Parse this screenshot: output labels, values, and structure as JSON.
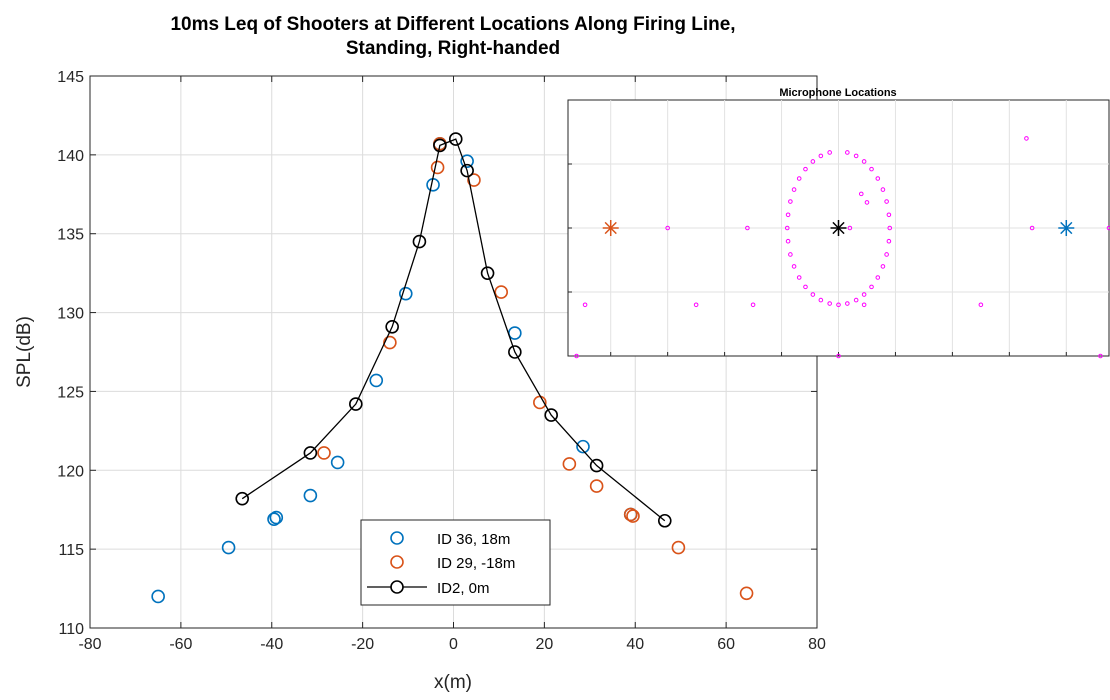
{
  "chart_data": [
    {
      "type": "scatter",
      "title_line1": "10ms Leq of Shooters at Different Locations Along Firing Line,",
      "title_line2": "Standing, Right-handed",
      "xlabel": "x(m)",
      "ylabel": "SPL(dB)",
      "xlim": [
        -80,
        80
      ],
      "ylim": [
        110,
        145
      ],
      "xticks": [
        -80,
        -60,
        -40,
        -20,
        0,
        20,
        40,
        60,
        80
      ],
      "yticks": [
        110,
        115,
        120,
        125,
        130,
        135,
        140,
        145
      ],
      "grid": true,
      "legend_position": "bottom-center",
      "series": [
        {
          "name": "ID 36, 18m",
          "color": "#0072BD",
          "marker": "circle",
          "line": false,
          "points": [
            [
              -65,
              112
            ],
            [
              -49.5,
              115.1
            ],
            [
              -39.5,
              116.9
            ],
            [
              -39,
              117
            ],
            [
              -31.5,
              118.4
            ],
            [
              -25.5,
              120.5
            ],
            [
              -17,
              125.7
            ],
            [
              -10.5,
              131.2
            ],
            [
              -4.5,
              138.1
            ],
            [
              -3,
              140.7
            ],
            [
              3,
              139.6
            ],
            [
              13.5,
              128.7
            ],
            [
              28.5,
              121.5
            ],
            [
              39,
              117.2
            ]
          ]
        },
        {
          "name": "ID 29, -18m",
          "color": "#D95319",
          "marker": "circle",
          "line": false,
          "points": [
            [
              -28.5,
              121.1
            ],
            [
              -14,
              128.1
            ],
            [
              -3.5,
              139.2
            ],
            [
              -3,
              140.7
            ],
            [
              4.5,
              138.4
            ],
            [
              10.5,
              131.3
            ],
            [
              19,
              124.3
            ],
            [
              25.5,
              120.4
            ],
            [
              31.5,
              119
            ],
            [
              39,
              117.2
            ],
            [
              39.5,
              117.1
            ],
            [
              49.5,
              115.1
            ],
            [
              64.5,
              112.2
            ]
          ]
        },
        {
          "name": "ID2, 0m",
          "color": "#000000",
          "marker": "circle",
          "line": true,
          "points": [
            [
              -46.5,
              118.2
            ],
            [
              -31.5,
              121.1
            ],
            [
              -21.5,
              124.2
            ],
            [
              -13.5,
              129.1
            ],
            [
              -7.5,
              134.5
            ],
            [
              -3,
              140.6
            ],
            [
              0.5,
              141
            ],
            [
              3,
              139
            ],
            [
              7.5,
              132.5
            ],
            [
              13.5,
              127.5
            ],
            [
              21.5,
              123.5
            ],
            [
              31.5,
              120.3
            ],
            [
              46.5,
              116.8
            ]
          ]
        }
      ]
    },
    {
      "type": "scatter",
      "title": "Microphone Locations",
      "xlim": [
        -95,
        95
      ],
      "ylim": [
        -30,
        30
      ],
      "grid": true,
      "mic_color": "#FF00FF",
      "mics": [
        [
          -92,
          -30
        ],
        [
          0,
          -30
        ],
        [
          92,
          -30
        ],
        [
          -89,
          -18
        ],
        [
          -50,
          -18
        ],
        [
          -30,
          -18
        ],
        [
          9,
          -18
        ],
        [
          50,
          -18
        ],
        [
          -60,
          0
        ],
        [
          -32,
          0
        ],
        [
          4,
          0
        ],
        [
          68,
          0
        ],
        [
          96,
          0
        ],
        [
          -18,
          0
        ],
        [
          -17.7,
          3.1
        ],
        [
          -16.9,
          6.2
        ],
        [
          -15.6,
          9.0
        ],
        [
          -13.8,
          11.6
        ],
        [
          -11.6,
          13.8
        ],
        [
          -9.0,
          15.6
        ],
        [
          -6.2,
          16.9
        ],
        [
          -3.1,
          17.7
        ],
        [
          3.1,
          17.7
        ],
        [
          6.2,
          16.9
        ],
        [
          9.0,
          15.6
        ],
        [
          11.6,
          13.8
        ],
        [
          13.8,
          11.6
        ],
        [
          15.6,
          9.0
        ],
        [
          16.9,
          6.2
        ],
        [
          17.7,
          3.1
        ],
        [
          18,
          0
        ],
        [
          17.7,
          -3.1
        ],
        [
          16.9,
          -6.2
        ],
        [
          15.6,
          -9.0
        ],
        [
          13.8,
          -11.6
        ],
        [
          11.6,
          -13.8
        ],
        [
          9.0,
          -15.6
        ],
        [
          6.2,
          -16.9
        ],
        [
          3.1,
          -17.7
        ],
        [
          0,
          -18
        ],
        [
          -3.1,
          -17.7
        ],
        [
          -6.2,
          -16.9
        ],
        [
          -9.0,
          -15.6
        ],
        [
          -11.6,
          -13.8
        ],
        [
          -13.8,
          -11.6
        ],
        [
          -15.6,
          -9.0
        ],
        [
          -16.9,
          -6.2
        ],
        [
          -17.7,
          -3.1
        ],
        [
          8,
          8
        ],
        [
          10,
          6
        ],
        [
          66,
          21
        ]
      ],
      "shooters": [
        {
          "x": -80,
          "y": 0,
          "color": "#D95319"
        },
        {
          "x": 0,
          "y": 0,
          "color": "#000000"
        },
        {
          "x": 80,
          "y": 0,
          "color": "#0072BD"
        }
      ]
    }
  ]
}
